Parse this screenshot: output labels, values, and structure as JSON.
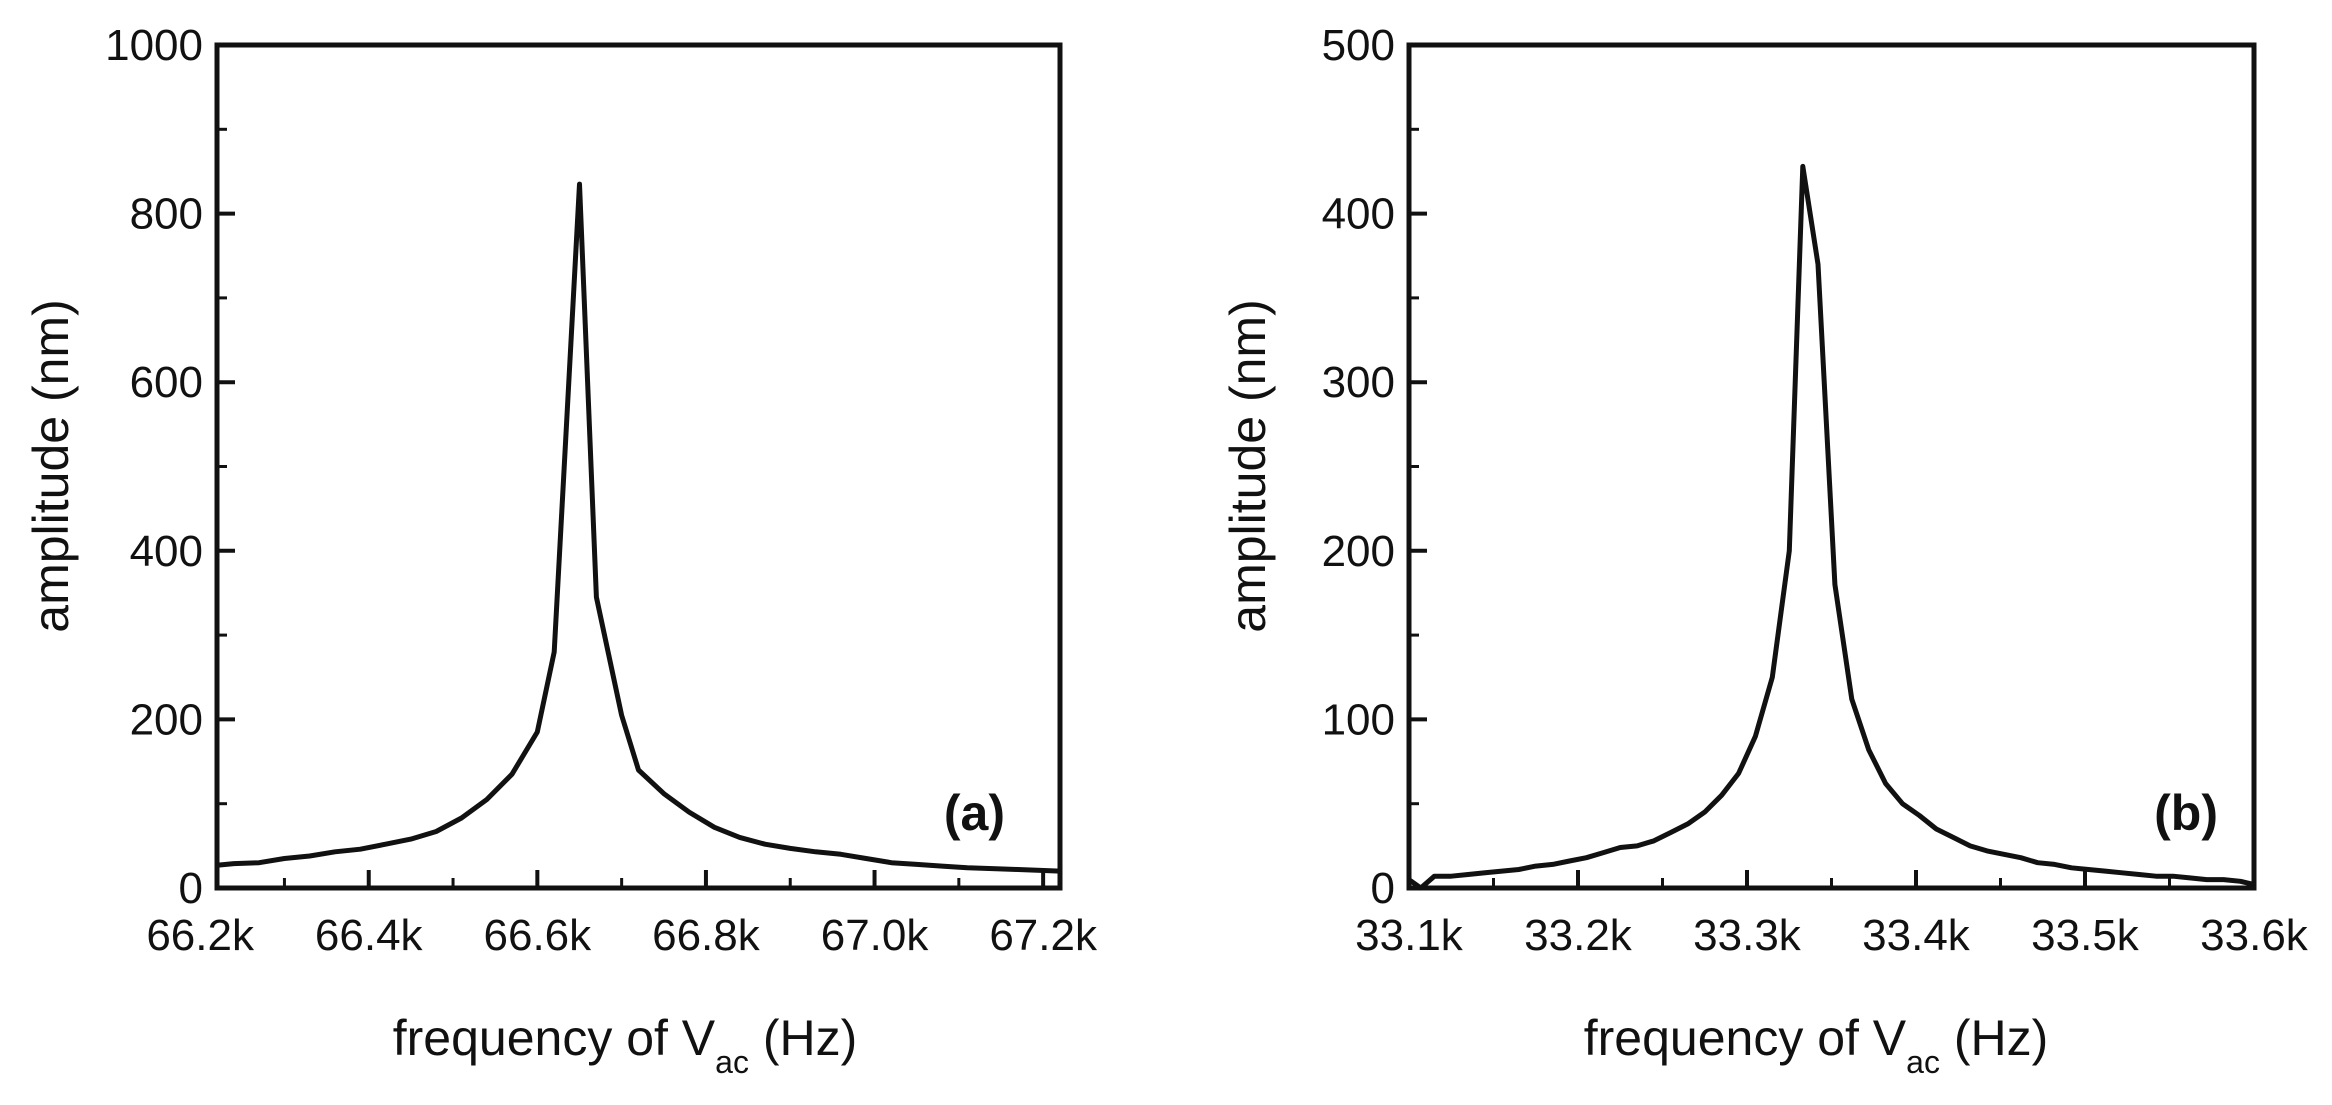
{
  "chart_data": [
    {
      "type": "line",
      "panel_label": "(a)",
      "xlabel_main": "frequency of V",
      "xlabel_sub": "ac",
      "xlabel_tail": " (Hz)",
      "ylabel": "amplitude (nm)",
      "xlim": [
        66.22,
        67.22
      ],
      "ylim": [
        0,
        1000
      ],
      "x_ticks": [
        66.2,
        66.4,
        66.6,
        66.8,
        67.0,
        67.2
      ],
      "x_tick_labels": [
        "66.2k",
        "66.4k",
        "66.6k",
        "66.8k",
        "67.0k",
        "67.2k"
      ],
      "y_ticks": [
        0,
        200,
        400,
        600,
        800,
        1000
      ],
      "y_tick_labels": [
        "0",
        "200",
        "400",
        "600",
        "800",
        "1000"
      ],
      "x_minor": [
        66.3,
        66.5,
        66.7,
        66.9,
        67.1
      ],
      "y_minor": [
        100,
        300,
        500,
        700,
        900
      ],
      "series": [
        {
          "name": "amplitude",
          "x": [
            66.22,
            66.24,
            66.27,
            66.3,
            66.33,
            66.36,
            66.39,
            66.42,
            66.45,
            66.48,
            66.51,
            66.54,
            66.57,
            66.6,
            66.62,
            66.65,
            66.67,
            66.7,
            66.72,
            66.75,
            66.78,
            66.81,
            66.84,
            66.87,
            66.9,
            66.93,
            66.96,
            66.99,
            67.02,
            67.05,
            67.08,
            67.11,
            67.14,
            67.17,
            67.22
          ],
          "y": [
            27,
            29,
            30,
            35,
            38,
            43,
            46,
            52,
            58,
            67,
            83,
            105,
            135,
            185,
            280,
            835,
            345,
            205,
            140,
            112,
            90,
            72,
            60,
            52,
            47,
            43,
            40,
            35,
            30,
            28,
            26,
            24,
            23,
            22,
            20
          ]
        }
      ]
    },
    {
      "type": "line",
      "panel_label": "(b)",
      "xlabel_main": "frequency of V",
      "xlabel_sub": "ac",
      "xlabel_tail": " (Hz)",
      "ylabel": "amplitude (nm)",
      "xlim": [
        33.1,
        33.6
      ],
      "ylim": [
        0,
        500
      ],
      "x_ticks": [
        33.1,
        33.2,
        33.3,
        33.4,
        33.5,
        33.6
      ],
      "x_tick_labels": [
        "33.1k",
        "33.2k",
        "33.3k",
        "33.4k",
        "33.5k",
        "33.6k"
      ],
      "y_ticks": [
        0,
        100,
        200,
        300,
        400,
        500
      ],
      "y_tick_labels": [
        "0",
        "100",
        "200",
        "300",
        "400",
        "500"
      ],
      "x_minor": [
        33.15,
        33.25,
        33.35,
        33.45,
        33.55
      ],
      "y_minor": [
        50,
        150,
        250,
        350,
        450
      ],
      "series": [
        {
          "name": "amplitude",
          "x": [
            33.1,
            33.107,
            33.115,
            33.125,
            33.135,
            33.145,
            33.155,
            33.165,
            33.175,
            33.185,
            33.195,
            33.205,
            33.215,
            33.225,
            33.235,
            33.245,
            33.255,
            33.265,
            33.275,
            33.285,
            33.295,
            33.305,
            33.315,
            33.325,
            33.333,
            33.342,
            33.352,
            33.362,
            33.372,
            33.382,
            33.392,
            33.402,
            33.412,
            33.422,
            33.432,
            33.442,
            33.452,
            33.462,
            33.472,
            33.482,
            33.492,
            33.502,
            33.512,
            33.522,
            33.532,
            33.542,
            33.552,
            33.562,
            33.572,
            33.582,
            33.592,
            33.6
          ],
          "y": [
            5,
            0,
            7,
            7,
            8,
            9,
            10,
            11,
            13,
            14,
            16,
            18,
            21,
            24,
            25,
            28,
            33,
            38,
            45,
            55,
            68,
            90,
            125,
            200,
            428,
            370,
            180,
            112,
            82,
            62,
            50,
            43,
            35,
            30,
            25,
            22,
            20,
            18,
            15,
            14,
            12,
            11,
            10,
            9,
            8,
            7,
            7,
            6,
            5,
            5,
            4,
            2
          ]
        }
      ]
    }
  ]
}
